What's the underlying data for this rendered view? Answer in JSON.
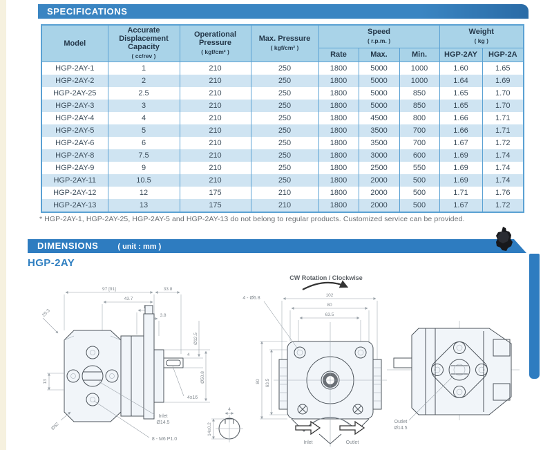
{
  "spec_section": {
    "title": "SPECIFICATIONS"
  },
  "table": {
    "headers": {
      "model": "Model",
      "capacity": "Accurate Displacement Capacity",
      "capacity_unit": "( cc/rev )",
      "op_pressure": "Operational Pressure",
      "op_pressure_unit": "( kgf/cm² )",
      "max_pressure": "Max. Pressure",
      "max_pressure_unit": "( kgf/cm² )",
      "speed": "Speed",
      "speed_unit": "( r.p.m. )",
      "weight": "Weight",
      "weight_unit": "( kg )",
      "rate": "Rate",
      "max": "Max.",
      "min": "Min.",
      "w_hgp2ay": "HGP-2AY",
      "w_hgp2a": "HGP-2A"
    },
    "rows": [
      [
        "HGP-2AY-1",
        "1",
        "210",
        "250",
        "1800",
        "5000",
        "1000",
        "1.60",
        "1.65"
      ],
      [
        "HGP-2AY-2",
        "2",
        "210",
        "250",
        "1800",
        "5000",
        "1000",
        "1.64",
        "1.69"
      ],
      [
        "HGP-2AY-25",
        "2.5",
        "210",
        "250",
        "1800",
        "5000",
        "850",
        "1.65",
        "1.70"
      ],
      [
        "HGP-2AY-3",
        "3",
        "210",
        "250",
        "1800",
        "5000",
        "850",
        "1.65",
        "1.70"
      ],
      [
        "HGP-2AY-4",
        "4",
        "210",
        "250",
        "1800",
        "4500",
        "800",
        "1.66",
        "1.71"
      ],
      [
        "HGP-2AY-5",
        "5",
        "210",
        "250",
        "1800",
        "3500",
        "700",
        "1.66",
        "1.71"
      ],
      [
        "HGP-2AY-6",
        "6",
        "210",
        "250",
        "1800",
        "3500",
        "700",
        "1.67",
        "1.72"
      ],
      [
        "HGP-2AY-8",
        "7.5",
        "210",
        "250",
        "1800",
        "3000",
        "600",
        "1.69",
        "1.74"
      ],
      [
        "HGP-2AY-9",
        "9",
        "210",
        "250",
        "1800",
        "2500",
        "550",
        "1.69",
        "1.74"
      ],
      [
        "HGP-2AY-11",
        "10.5",
        "210",
        "250",
        "1800",
        "2000",
        "500",
        "1.69",
        "1.74"
      ],
      [
        "HGP-2AY-12",
        "12",
        "175",
        "210",
        "1800",
        "2000",
        "500",
        "1.71",
        "1.76"
      ],
      [
        "HGP-2AY-13",
        "13",
        "175",
        "210",
        "1800",
        "2000",
        "500",
        "1.67",
        "1.72"
      ]
    ],
    "footnote": "* HGP-2AY-1, HGP-2AY-25, HGP-2AY-5 and HGP-2AY-13 do not belong to regular products. Customized service can be provided."
  },
  "dim_section": {
    "title": "DIMENSIONS",
    "unit_note": "( unit : mm )",
    "model": "HGP-2AY"
  },
  "drawing": {
    "rotation_note": "CW Rotation / Clockwise",
    "side_view": {
      "dims": {
        "overall": "97 [91]",
        "rear": "33.8",
        "front": "43.7",
        "step": "10",
        "plate": "3.8",
        "chamfer": "25.3",
        "shaft_dia": "Ø12.5",
        "pilot_dia": "Ø50.8",
        "key_w": "4",
        "port_h": "13",
        "flange_dia": "Ø52"
      },
      "key_label": "4x16",
      "inlet_label": "Inlet",
      "inlet_dia": "Ø14.5",
      "screw_label": "8 - M6 P1.0"
    },
    "front_view": {
      "hole_label": "4 - Ø6.8",
      "dims": {
        "width": "102",
        "bolt_w": "80",
        "inner_w": "63.5",
        "height": "80",
        "inner_h": "63.5"
      }
    },
    "rear_view": {
      "outlet_label": "Outlet",
      "outlet_dia": "Ø14.5"
    },
    "key_detail": {
      "width": "4",
      "depth": "14±0.2"
    },
    "flow": {
      "inlet": "Inlet",
      "outlet": "Outlet"
    }
  },
  "colors": {
    "banner_blue": "#3a85c2",
    "banner_blue_dark": "#2a6ba6",
    "dim_banner_blue": "#2e7cc0",
    "header_bg": "#a9d3e8",
    "row_alt_bg": "#cfe4f2",
    "table_border": "#5aa1d3",
    "heading_blue": "#2f7fc1"
  }
}
